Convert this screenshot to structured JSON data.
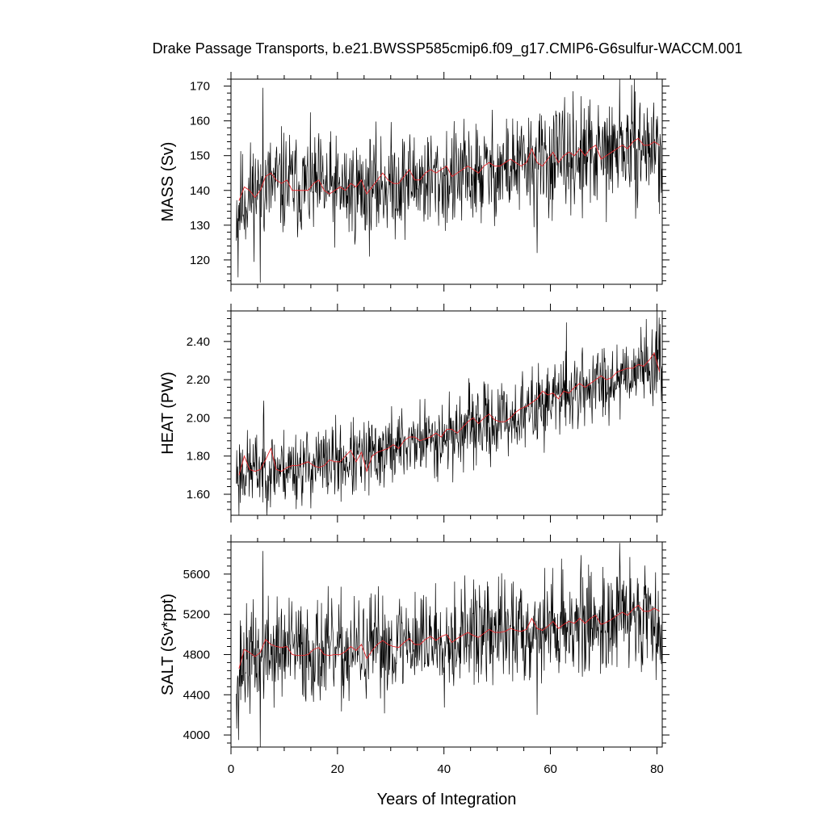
{
  "chart_data": [
    {
      "type": "line",
      "id": "mass",
      "title": "Drake Passage Transports, b.e21.BWSSP585cmip6.f09_g17.CMIP6-G6sulfur-WACCM.001",
      "xlabel": "",
      "ylabel": "MASS (Sv)",
      "xlim": [
        0,
        81
      ],
      "ylim": [
        113,
        172
      ],
      "yticks": [
        120,
        130,
        140,
        150,
        160,
        170
      ],
      "ytick_labels": [
        "120",
        "130",
        "140",
        "150",
        "160",
        "170"
      ],
      "xticks": [
        0,
        20,
        40,
        60,
        80
      ],
      "xtick_labels": [],
      "noise": {
        "seed": 11,
        "amp": 7.5,
        "spikes": [
          [
            1.3,
            115
          ],
          [
            5.5,
            113.5
          ],
          [
            6.0,
            169.5
          ],
          [
            57.5,
            122
          ],
          [
            66,
            132
          ],
          [
            73,
            172
          ]
        ]
      },
      "series": [
        {
          "role": "monthly",
          "color": "#000000",
          "x": [
            1,
            5,
            10,
            15,
            20,
            25,
            30,
            35,
            40,
            45,
            50,
            55,
            60,
            65,
            70,
            75,
            80,
            81
          ],
          "values": [
            135,
            141,
            142,
            141,
            140,
            140,
            142,
            143,
            143,
            144,
            146,
            147,
            148,
            150,
            150,
            152,
            153,
            147
          ]
        },
        {
          "role": "annual",
          "color": "#e8262b",
          "x": [
            1.5,
            2.5,
            3.5,
            4.5,
            5.5,
            6.5,
            7.5,
            8.5,
            9.5,
            10.5,
            11.5,
            12.5,
            13.5,
            14.5,
            15.5,
            16.5,
            17.5,
            18.5,
            19.5,
            20.5,
            21.5,
            22.5,
            23.5,
            24.5,
            25.5,
            26.5,
            27.5,
            28.5,
            29.5,
            30.5,
            31.5,
            32.5,
            33.5,
            34.5,
            35.5,
            36.5,
            37.5,
            38.5,
            39.5,
            40.5,
            41.5,
            42.5,
            43.5,
            44.5,
            45.5,
            46.5,
            47.5,
            48.5,
            49.5,
            50.5,
            51.5,
            52.5,
            53.5,
            54.5,
            55.5,
            56.5,
            57.5,
            58.5,
            59.5,
            60.5,
            61.5,
            62.5,
            63.5,
            64.5,
            65.5,
            66.5,
            67.5,
            68.5,
            69.5,
            70.5,
            71.5,
            72.5,
            73.5,
            74.5,
            75.5,
            76.5,
            77.5,
            78.5,
            79.5,
            80.5
          ],
          "values": [
            137,
            141,
            140,
            138,
            140,
            144,
            145,
            143,
            142,
            143,
            140,
            140,
            140,
            140,
            142,
            143,
            140,
            139,
            140,
            141,
            140,
            142,
            141,
            143,
            139,
            141,
            143,
            145,
            143,
            142,
            142,
            144,
            146,
            143,
            143,
            145,
            146,
            145,
            146,
            147,
            144,
            145,
            146,
            147,
            146,
            145,
            147,
            148,
            147,
            147,
            148,
            149,
            148,
            147,
            148,
            152,
            148,
            147,
            149,
            151,
            148,
            150,
            151,
            150,
            152,
            150,
            152,
            153,
            149,
            150,
            151,
            152,
            153,
            152,
            154,
            155,
            153,
            153,
            154,
            153
          ]
        }
      ]
    },
    {
      "type": "line",
      "id": "heat",
      "title": "",
      "xlabel": "",
      "ylabel": "HEAT (PW)",
      "xlim": [
        0,
        81
      ],
      "ylim": [
        1.49,
        2.56
      ],
      "yticks": [
        1.6,
        1.8,
        2.0,
        2.2,
        2.4
      ],
      "ytick_labels": [
        "1.60",
        "1.80",
        "2.00",
        "2.20",
        "2.40"
      ],
      "xticks": [
        0,
        20,
        40,
        60,
        80
      ],
      "xtick_labels": [],
      "noise": {
        "seed": 23,
        "amp": 0.1,
        "spikes": [
          [
            1.5,
            1.49
          ],
          [
            6.2,
            2.09
          ],
          [
            63,
            2.5
          ],
          [
            80,
            2.56
          ],
          [
            81,
            2.06
          ]
        ]
      },
      "series": [
        {
          "role": "monthly",
          "color": "#000000",
          "x": [
            1,
            5,
            10,
            15,
            20,
            25,
            30,
            35,
            40,
            45,
            50,
            55,
            60,
            65,
            70,
            75,
            80,
            81
          ],
          "values": [
            1.72,
            1.73,
            1.74,
            1.75,
            1.77,
            1.78,
            1.84,
            1.88,
            1.9,
            1.95,
            1.98,
            2.02,
            2.1,
            2.14,
            2.19,
            2.25,
            2.3,
            2.22
          ]
        },
        {
          "role": "annual",
          "color": "#e8262b",
          "x": [
            1.5,
            2.5,
            3.5,
            4.5,
            5.5,
            6.5,
            7.5,
            8.5,
            9.5,
            10.5,
            11.5,
            12.5,
            13.5,
            14.5,
            15.5,
            16.5,
            17.5,
            18.5,
            19.5,
            20.5,
            21.5,
            22.5,
            23.5,
            24.5,
            25.5,
            26.5,
            27.5,
            28.5,
            29.5,
            30.5,
            31.5,
            32.5,
            33.5,
            34.5,
            35.5,
            36.5,
            37.5,
            38.5,
            39.5,
            40.5,
            41.5,
            42.5,
            43.5,
            44.5,
            45.5,
            46.5,
            47.5,
            48.5,
            49.5,
            50.5,
            51.5,
            52.5,
            53.5,
            54.5,
            55.5,
            56.5,
            57.5,
            58.5,
            59.5,
            60.5,
            61.5,
            62.5,
            63.5,
            64.5,
            65.5,
            66.5,
            67.5,
            68.5,
            69.5,
            70.5,
            71.5,
            72.5,
            73.5,
            74.5,
            75.5,
            76.5,
            77.5,
            78.5,
            79.5,
            80.5
          ],
          "values": [
            1.7,
            1.8,
            1.73,
            1.72,
            1.73,
            1.78,
            1.84,
            1.73,
            1.72,
            1.74,
            1.75,
            1.75,
            1.76,
            1.77,
            1.75,
            1.74,
            1.75,
            1.78,
            1.77,
            1.77,
            1.8,
            1.83,
            1.77,
            1.82,
            1.72,
            1.8,
            1.82,
            1.83,
            1.84,
            1.86,
            1.84,
            1.88,
            1.9,
            1.9,
            1.88,
            1.89,
            1.9,
            1.92,
            1.9,
            1.94,
            1.94,
            1.92,
            1.95,
            1.98,
            2.0,
            1.97,
            2.0,
            2.02,
            1.99,
            1.98,
            1.98,
            2.0,
            2.03,
            2.05,
            2.06,
            2.08,
            2.1,
            2.14,
            2.12,
            2.13,
            2.1,
            2.14,
            2.13,
            2.16,
            2.18,
            2.16,
            2.18,
            2.2,
            2.22,
            2.2,
            2.21,
            2.24,
            2.25,
            2.26,
            2.26,
            2.28,
            2.27,
            2.3,
            2.34,
            2.24
          ]
        }
      ]
    },
    {
      "type": "line",
      "id": "salt",
      "title": "",
      "xlabel": "Years of Integration",
      "ylabel": "SALT (Sv*ppt)",
      "xlim": [
        0,
        81
      ],
      "ylim": [
        3880,
        5920
      ],
      "yticks": [
        4000,
        4400,
        4800,
        5200,
        5600
      ],
      "ytick_labels": [
        "4000",
        "4400",
        "4800",
        "5200",
        "5600"
      ],
      "xticks": [
        0,
        20,
        40,
        60,
        80
      ],
      "xtick_labels": [
        "0",
        "20",
        "40",
        "60",
        "80"
      ],
      "noise": {
        "seed": 37,
        "amp": 260,
        "spikes": [
          [
            1.4,
            3950
          ],
          [
            5.5,
            3880
          ],
          [
            6.0,
            5830
          ],
          [
            57.5,
            4200
          ],
          [
            66,
            4580
          ],
          [
            73,
            5910
          ]
        ]
      },
      "series": [
        {
          "role": "monthly",
          "color": "#000000",
          "x": [
            1,
            5,
            10,
            15,
            20,
            25,
            30,
            35,
            40,
            45,
            50,
            55,
            60,
            65,
            70,
            75,
            80,
            81
          ],
          "values": [
            4650,
            4800,
            4850,
            4830,
            4800,
            4820,
            4900,
            4950,
            4980,
            5000,
            5020,
            5050,
            5080,
            5120,
            5130,
            5180,
            5220,
            4950
          ]
        },
        {
          "role": "annual",
          "color": "#e8262b",
          "x": [
            1.5,
            2.5,
            3.5,
            4.5,
            5.5,
            6.5,
            7.5,
            8.5,
            9.5,
            10.5,
            11.5,
            12.5,
            13.5,
            14.5,
            15.5,
            16.5,
            17.5,
            18.5,
            19.5,
            20.5,
            21.5,
            22.5,
            23.5,
            24.5,
            25.5,
            26.5,
            27.5,
            28.5,
            29.5,
            30.5,
            31.5,
            32.5,
            33.5,
            34.5,
            35.5,
            36.5,
            37.5,
            38.5,
            39.5,
            40.5,
            41.5,
            42.5,
            43.5,
            44.5,
            45.5,
            46.5,
            47.5,
            48.5,
            49.5,
            50.5,
            51.5,
            52.5,
            53.5,
            54.5,
            55.5,
            56.5,
            57.5,
            58.5,
            59.5,
            60.5,
            61.5,
            62.5,
            63.5,
            64.5,
            65.5,
            66.5,
            67.5,
            68.5,
            69.5,
            70.5,
            71.5,
            72.5,
            73.5,
            74.5,
            75.5,
            76.5,
            77.5,
            78.5,
            79.5,
            80.5
          ],
          "values": [
            4660,
            4850,
            4820,
            4780,
            4820,
            4950,
            4900,
            4880,
            4870,
            4880,
            4800,
            4790,
            4790,
            4800,
            4850,
            4870,
            4800,
            4790,
            4800,
            4800,
            4830,
            4880,
            4840,
            4900,
            4760,
            4840,
            4900,
            4940,
            4900,
            4880,
            4870,
            4920,
            4960,
            4900,
            4900,
            4950,
            4980,
            4940,
            4980,
            5000,
            4920,
            4960,
            4990,
            5020,
            4990,
            4970,
            5010,
            5050,
            5020,
            5020,
            5030,
            5060,
            5040,
            5030,
            5050,
            5160,
            5060,
            5040,
            5080,
            5130,
            5060,
            5100,
            5130,
            5110,
            5160,
            5110,
            5160,
            5190,
            5100,
            5120,
            5150,
            5190,
            5220,
            5190,
            5250,
            5290,
            5230,
            5230,
            5260,
            5230
          ]
        }
      ]
    }
  ]
}
